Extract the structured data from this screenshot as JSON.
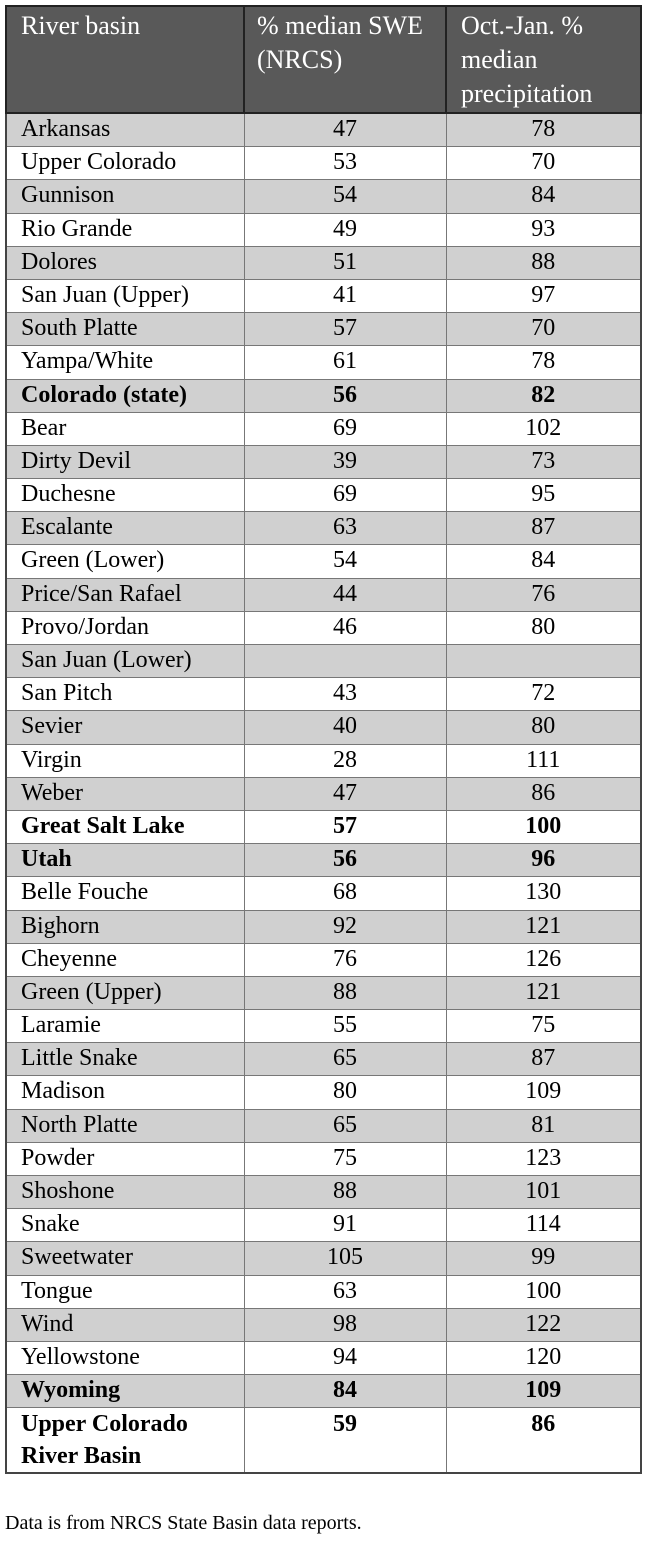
{
  "header": [
    "River basin",
    "% median SWE (NRCS)",
    "Oct.-Jan. % median precipitation"
  ],
  "rows": [
    {
      "basin": "Arkansas",
      "swe": "47",
      "precip": "78"
    },
    {
      "basin": "Upper Colorado",
      "swe": "53",
      "precip": "70"
    },
    {
      "basin": "Gunnison",
      "swe": "54",
      "precip": "84"
    },
    {
      "basin": "Rio Grande",
      "swe": "49",
      "precip": "93"
    },
    {
      "basin": "Dolores",
      "swe": "51",
      "precip": "88"
    },
    {
      "basin": "San Juan (Upper)",
      "swe": "41",
      "precip": "97"
    },
    {
      "basin": "South Platte",
      "swe": "57",
      "precip": "70"
    },
    {
      "basin": "Yampa/White",
      "swe": "61",
      "precip": "78"
    },
    {
      "basin": "Colorado (state)",
      "swe": "56",
      "precip": "82",
      "bold": true
    },
    {
      "basin": "Bear",
      "swe": "69",
      "precip": "102"
    },
    {
      "basin": "Dirty Devil",
      "swe": "39",
      "precip": "73"
    },
    {
      "basin": "Duchesne",
      "swe": "69",
      "precip": "95"
    },
    {
      "basin": "Escalante",
      "swe": "63",
      "precip": "87"
    },
    {
      "basin": "Green (Lower)",
      "swe": "54",
      "precip": "84"
    },
    {
      "basin": "Price/San Rafael",
      "swe": "44",
      "precip": "76"
    },
    {
      "basin": "Provo/Jordan",
      "swe": "46",
      "precip": "80"
    },
    {
      "basin": "San Juan (Lower)",
      "swe": "",
      "precip": ""
    },
    {
      "basin": "San Pitch",
      "swe": "43",
      "precip": "72"
    },
    {
      "basin": "Sevier",
      "swe": "40",
      "precip": "80"
    },
    {
      "basin": "Virgin",
      "swe": "28",
      "precip": "111"
    },
    {
      "basin": "Weber",
      "swe": "47",
      "precip": "86"
    },
    {
      "basin": "Great Salt Lake",
      "swe": "57",
      "precip": "100",
      "bold": true
    },
    {
      "basin": "Utah",
      "swe": "56",
      "precip": "96",
      "bold": true
    },
    {
      "basin": "Belle Fouche",
      "swe": "68",
      "precip": "130"
    },
    {
      "basin": "Bighorn",
      "swe": "92",
      "precip": "121"
    },
    {
      "basin": "Cheyenne",
      "swe": "76",
      "precip": "126"
    },
    {
      "basin": "Green (Upper)",
      "swe": "88",
      "precip": "121"
    },
    {
      "basin": "Laramie",
      "swe": "55",
      "precip": "75"
    },
    {
      "basin": "Little Snake",
      "swe": "65",
      "precip": "87"
    },
    {
      "basin": "Madison",
      "swe": "80",
      "precip": "109"
    },
    {
      "basin": "North Platte",
      "swe": "65",
      "precip": "81"
    },
    {
      "basin": "Powder",
      "swe": "75",
      "precip": "123"
    },
    {
      "basin": "Shoshone",
      "swe": "88",
      "precip": "101"
    },
    {
      "basin": "Snake",
      "swe": "91",
      "precip": "114"
    },
    {
      "basin": "Sweetwater",
      "swe": "105",
      "precip": "99"
    },
    {
      "basin": "Tongue",
      "swe": "63",
      "precip": "100"
    },
    {
      "basin": "Wind",
      "swe": "98",
      "precip": "122"
    },
    {
      "basin": "Yellowstone",
      "swe": "94",
      "precip": "120"
    },
    {
      "basin": "Wyoming",
      "swe": "84",
      "precip": "109",
      "bold": true
    },
    {
      "basin": "Upper Colorado River Basin",
      "swe": "59",
      "precip": "86",
      "bold": true
    }
  ],
  "footnote": "Data is from NRCS State Basin data reports.",
  "colors": {
    "header_bg": "#595959",
    "header_text": "#ffffff",
    "stripe": "#d0d0d0"
  }
}
